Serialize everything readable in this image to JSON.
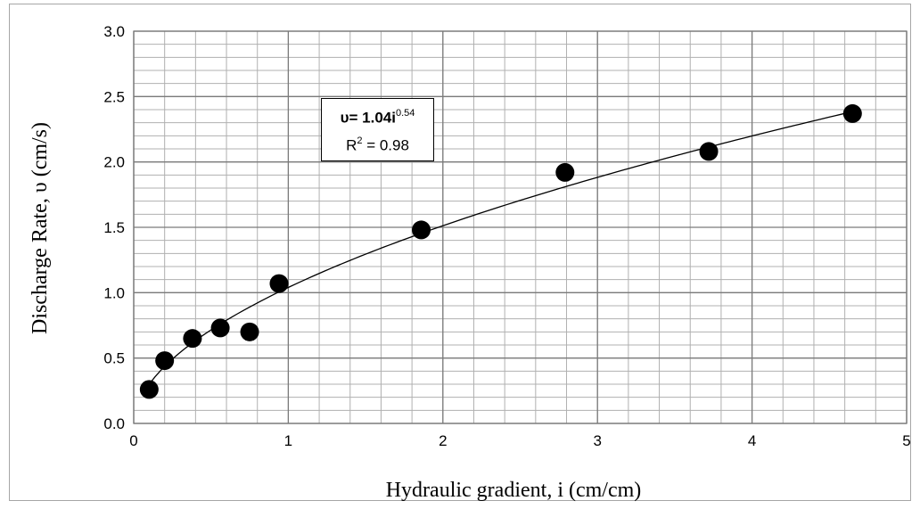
{
  "chart_data": {
    "type": "scatter",
    "xlabel": "Hydraulic gradient, i (cm/cm)",
    "ylabel": "Discharge Rate, υ (cm/s)",
    "xlim": [
      0,
      5
    ],
    "ylim": [
      0,
      3.0
    ],
    "x_ticks": [
      "0",
      "1",
      "2",
      "3",
      "4",
      "5"
    ],
    "y_ticks": [
      "0.0",
      "0.5",
      "1.0",
      "1.5",
      "2.0",
      "2.5",
      "3.0"
    ],
    "grid": true,
    "points": [
      {
        "x": 0.1,
        "y": 0.26
      },
      {
        "x": 0.2,
        "y": 0.48
      },
      {
        "x": 0.38,
        "y": 0.65
      },
      {
        "x": 0.56,
        "y": 0.73
      },
      {
        "x": 0.75,
        "y": 0.7
      },
      {
        "x": 0.94,
        "y": 1.07
      },
      {
        "x": 1.86,
        "y": 1.48
      },
      {
        "x": 2.79,
        "y": 1.92
      },
      {
        "x": 3.72,
        "y": 2.08
      },
      {
        "x": 4.65,
        "y": 2.37
      }
    ],
    "trendline": {
      "type": "power",
      "coefficient": 1.04,
      "exponent": 0.54,
      "x_range": [
        0.1,
        4.65
      ]
    },
    "annotation": {
      "equation_base": "υ= 1.04i",
      "equation_exp": "0.54",
      "r2_base": "R",
      "r2_exp": "2",
      "r2_value": " = 0.98"
    }
  }
}
